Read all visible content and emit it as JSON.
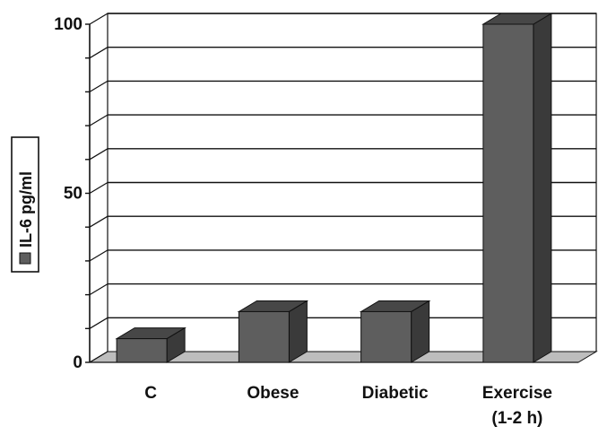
{
  "chart_data": {
    "type": "bar",
    "style": "3d-column",
    "categories": [
      "C",
      "Obese",
      "Diabetic",
      "Exercise\n(1-2 h)"
    ],
    "series": [
      {
        "name": "IL-6 pg/ml",
        "values": [
          7,
          15,
          15,
          100
        ]
      }
    ],
    "ylim": [
      0,
      100
    ],
    "yticks": [
      0,
      10,
      20,
      30,
      40,
      50,
      60,
      70,
      80,
      90,
      100
    ],
    "ytick_labels": {
      "0": "0",
      "50": "50",
      "100": "100"
    },
    "grid": true,
    "legend": "left",
    "colors": {
      "bar_front": "#5e5e5e",
      "bar_top": "#474747",
      "bar_side": "#3a3a3a",
      "floor": "#bdbdbd",
      "wall": "#ffffff",
      "grid": "#111111",
      "legend_swatch": "#5e5e5e"
    }
  }
}
